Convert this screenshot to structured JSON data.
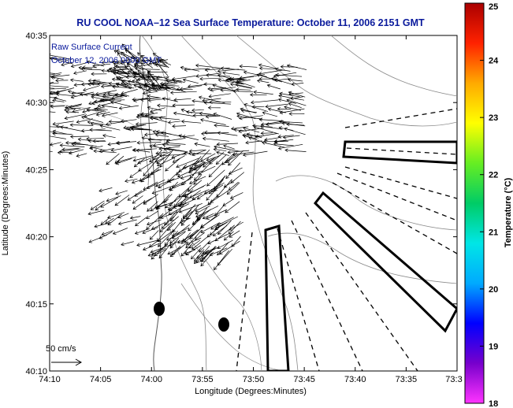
{
  "chart_data": {
    "type": "vector-field",
    "title": "RU COOL  NOAA–12  Sea Surface Temperature:  October 11, 2006 2151 GMT",
    "overlay_lines": [
      "Raw Surface Current",
      "October 12, 2006 0000 GMT"
    ],
    "xlabel": "Longitude (Degrees:Minutes)",
    "ylabel": "Latitude (Degrees:Minutes)",
    "x_ticks": [
      "74:10",
      "74:05",
      "74:00",
      "73:55",
      "73:50",
      "73:45",
      "73:40",
      "73:35",
      "73:3"
    ],
    "y_ticks": [
      "40:10",
      "40:15",
      "40:20",
      "40:25",
      "40:30",
      "40:35"
    ],
    "scale_label": "50 cm/s",
    "colorbar": {
      "label": "Temperature (°C)",
      "ticks": [
        "18",
        "19",
        "20",
        "21",
        "22",
        "23",
        "24",
        "25"
      ],
      "range": [
        18,
        25
      ],
      "colors": [
        "#ff33ff",
        "#7700cc",
        "#0000ff",
        "#00aaff",
        "#00e6e6",
        "#00cc66",
        "#66ee22",
        "#ffff00",
        "#ffaa00",
        "#ff2200",
        "#aa0000"
      ]
    },
    "markers": [
      {
        "lon_min": -0.9,
        "lat_min": 15.6
      },
      {
        "lon_min": 2.3,
        "lat_min": 13.4
      }
    ],
    "grid": false
  }
}
